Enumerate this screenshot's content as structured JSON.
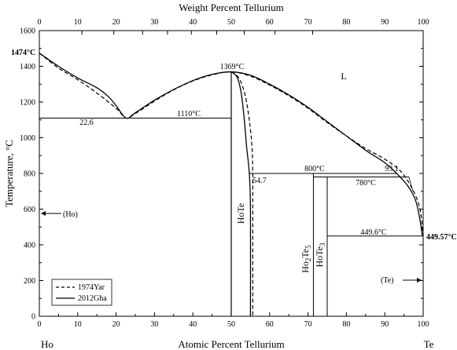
{
  "chart_data": {
    "type": "phase-diagram",
    "top_axis": {
      "label": "Weight Percent Tellurium",
      "ticks": [
        "0",
        "10",
        "20",
        "30",
        "40",
        "50",
        "60",
        "70",
        "80",
        "90",
        "100"
      ],
      "tick_values": [
        0,
        10,
        20,
        30,
        40,
        50,
        60,
        70,
        80,
        90,
        100
      ]
    },
    "bottom_axis": {
      "label": "Atomic Percent Tellurium",
      "ticks": [
        "0",
        "10",
        "20",
        "30",
        "40",
        "50",
        "60",
        "70",
        "80",
        "90",
        "100"
      ],
      "tick_values": [
        0,
        10,
        20,
        30,
        40,
        50,
        60,
        70,
        80,
        90,
        100
      ],
      "range": [
        0,
        100
      ]
    },
    "y_axis": {
      "label": "Temperature, °C",
      "ticks": [
        "0",
        "200",
        "400",
        "600",
        "800",
        "1000",
        "1200",
        "1400",
        "1600"
      ],
      "tick_values": [
        0,
        200,
        400,
        600,
        800,
        1000,
        1200,
        1400,
        1600
      ],
      "range": [
        0,
        1600
      ]
    },
    "endpoints": {
      "left": "Ho",
      "right": "Te"
    },
    "annotations": {
      "ho_melting": "1474°C",
      "hote_melting": "1369°C",
      "eutectic_temp": "1110°C",
      "eutectic_comp": "22.6",
      "peritectic_temp": "800°C",
      "peritectic_comp_liquid": "93.1",
      "peritectic_comp_solid": "54.7",
      "hote3_temp": "780°C",
      "te_eutectic_temp": "449.6°C",
      "te_melting": "449.57°C",
      "liquid_label": "L",
      "ho_phase": "(Ho)",
      "te_phase": "(Te)"
    },
    "phases": {
      "hote": "HoTe",
      "ho2te5_main": "Ho",
      "ho2te5_sub1": "2",
      "ho2te5_mid": "Te",
      "ho2te5_sub2": "5",
      "hote3_main": "HoTe",
      "hote3_sub": "3"
    },
    "legend": {
      "position": "bottom-left",
      "entries": [
        {
          "name": "1974Yar",
          "style": "dashed"
        },
        {
          "name": "2012Gha",
          "style": "solid"
        }
      ]
    },
    "curves": {
      "liquidus_2012Gha": [
        [
          0,
          1474
        ],
        [
          5,
          1400
        ],
        [
          10,
          1335
        ],
        [
          15,
          1280
        ],
        [
          18,
          1230
        ],
        [
          20,
          1180
        ],
        [
          22.6,
          1110
        ],
        [
          25,
          1140
        ],
        [
          30,
          1210
        ],
        [
          35,
          1270
        ],
        [
          40,
          1320
        ],
        [
          45,
          1355
        ],
        [
          50,
          1369
        ],
        [
          55,
          1350
        ],
        [
          60,
          1300
        ],
        [
          65,
          1240
        ],
        [
          70,
          1170
        ],
        [
          75,
          1090
        ],
        [
          80,
          1010
        ],
        [
          85,
          930
        ],
        [
          90,
          860
        ],
        [
          93.1,
          800
        ],
        [
          96,
          730
        ],
        [
          98,
          650
        ],
        [
          99,
          560
        ],
        [
          99.8,
          449.6
        ]
      ],
      "liquidus_1974Yar": [
        [
          0,
          1474
        ],
        [
          5,
          1390
        ],
        [
          10,
          1325
        ],
        [
          15,
          1250
        ],
        [
          20,
          1165
        ],
        [
          22.6,
          1110
        ],
        [
          25,
          1135
        ],
        [
          30,
          1205
        ],
        [
          35,
          1268
        ],
        [
          40,
          1318
        ],
        [
          45,
          1352
        ],
        [
          50,
          1369
        ],
        [
          55,
          1345
        ],
        [
          60,
          1295
        ],
        [
          65,
          1235
        ],
        [
          70,
          1165
        ],
        [
          75,
          1085
        ],
        [
          80,
          1010
        ],
        [
          85,
          940
        ],
        [
          90,
          880
        ],
        [
          94,
          815
        ],
        [
          96.5,
          740
        ],
        [
          98.5,
          650
        ],
        [
          99.5,
          560
        ],
        [
          99.9,
          449.6
        ]
      ],
      "hote_solidus_2012Gha": [
        [
          50,
          1369
        ],
        [
          51.5,
          1340
        ],
        [
          52.6,
          1250
        ],
        [
          53.4,
          1100
        ],
        [
          54.0,
          950
        ],
        [
          54.7,
          800
        ],
        [
          55,
          600
        ],
        [
          55,
          0
        ]
      ],
      "hote_solidus_1974Yar": [
        [
          50,
          1369
        ],
        [
          52.0,
          1335
        ],
        [
          53.6,
          1240
        ],
        [
          54.7,
          1100
        ],
        [
          55.4,
          950
        ],
        [
          55.6,
          800
        ],
        [
          55.6,
          600
        ],
        [
          55.6,
          0
        ]
      ],
      "hote_left_boundary": [
        [
          50,
          1369
        ],
        [
          50,
          0
        ]
      ],
      "eutectic_line": [
        [
          0,
          1110
        ],
        [
          50,
          1110
        ]
      ],
      "peritectic_line": [
        [
          54.7,
          800
        ],
        [
          93.1,
          800
        ]
      ],
      "hote3_line": [
        [
          71.4,
          780
        ],
        [
          96.3,
          780
        ]
      ],
      "te_eutectic_line": [
        [
          75,
          449.6
        ],
        [
          100,
          449.6
        ]
      ],
      "ho2te5_line": [
        [
          71.4,
          0
        ],
        [
          71.4,
          800
        ]
      ],
      "hote3_vertical": [
        [
          75,
          0
        ],
        [
          75,
          780
        ]
      ]
    }
  }
}
